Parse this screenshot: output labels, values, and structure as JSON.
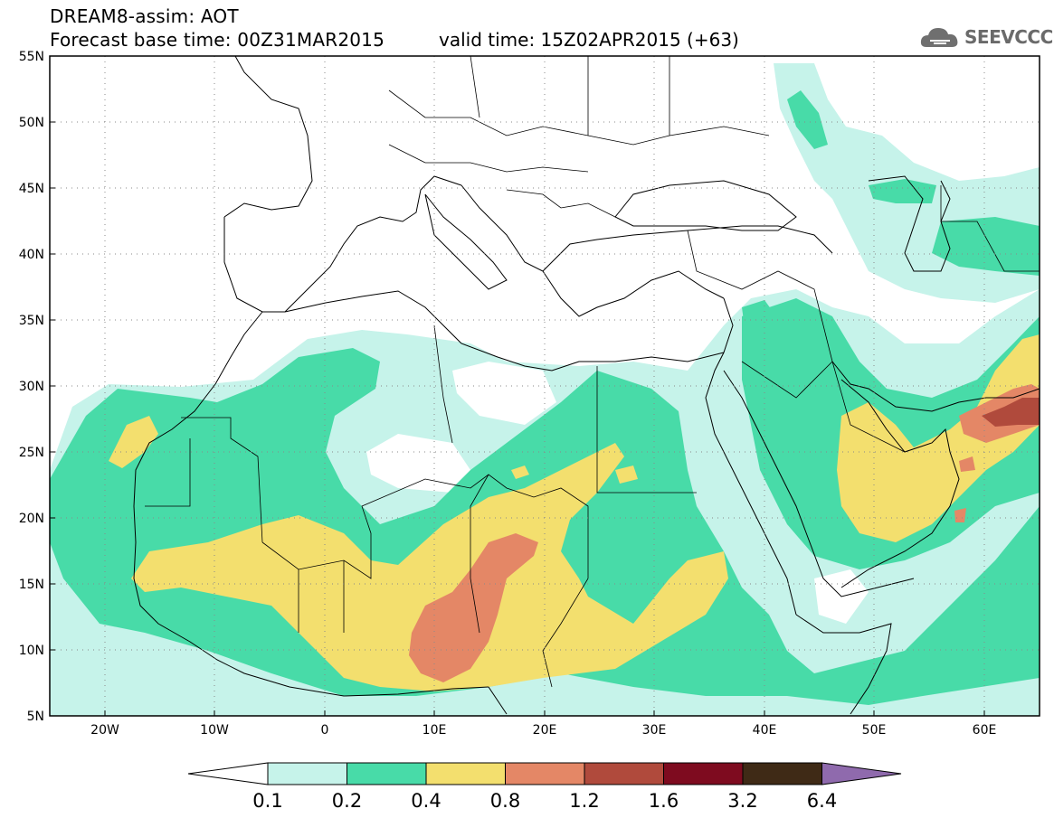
{
  "header": {
    "line1": "DREAM8-assim: AOT",
    "line2": "Forecast base time: 00Z31MAR2015",
    "valid": "valid time: 15Z02APR2015 (+63)",
    "logo": "SEEVCCC"
  },
  "map": {
    "lon_range": [
      -25,
      65
    ],
    "lat_range": [
      5,
      55
    ],
    "lat_ticks": [
      "55N",
      "50N",
      "45N",
      "40N",
      "35N",
      "30N",
      "25N",
      "20N",
      "15N",
      "10N",
      "5N"
    ],
    "lon_ticks": [
      "20W",
      "10W",
      "0",
      "10E",
      "20E",
      "30E",
      "40E",
      "50E",
      "60E"
    ],
    "gridlines": "dotted"
  },
  "colorbar": {
    "levels": [
      "0.1",
      "0.2",
      "0.4",
      "0.8",
      "1.2",
      "1.6",
      "3.2",
      "6.4"
    ],
    "colors": [
      "#ffffff",
      "#c6f3ea",
      "#48dba8",
      "#f3df6e",
      "#e48766",
      "#b04a3c",
      "#7e0b1f",
      "#3f2a16",
      "#8f6aad"
    ]
  }
}
